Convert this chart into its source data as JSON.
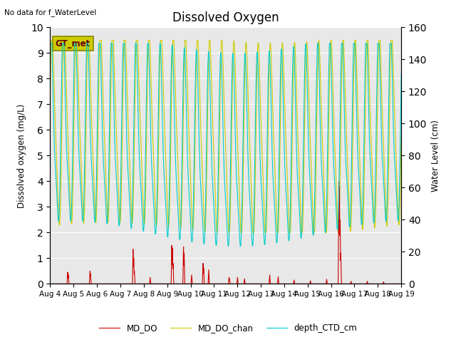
{
  "title": "Dissolved Oxygen",
  "top_left_text": "No data for f_WaterLevel",
  "ylabel_left": "Dissolved oxygen (mg/L)",
  "ylabel_right": "Water Level (cm)",
  "ylim_left": [
    0.0,
    10.0
  ],
  "ylim_right": [
    0,
    160
  ],
  "yticks_left": [
    0.0,
    1.0,
    2.0,
    3.0,
    4.0,
    5.0,
    6.0,
    7.0,
    8.0,
    9.0,
    10.0
  ],
  "yticks_right": [
    0,
    20,
    40,
    60,
    80,
    100,
    120,
    140,
    160
  ],
  "bg_color": "#e8e8e8",
  "fig_color": "#ffffff",
  "legend_box_text": "GT_met",
  "colors": {
    "MD_DO": "#cc0000",
    "MD_DO_chan": "#cccc00",
    "depth_CTD_cm": "#00cccc"
  },
  "xtick_labels": [
    "Aug 4",
    "Aug 5",
    "Aug 6",
    "Aug 7",
    "Aug 8",
    "Aug 9",
    "Aug 10",
    "Aug 11",
    "Aug 12",
    "Aug 13",
    "Aug 14",
    "Aug 15",
    "Aug 16",
    "Aug 17",
    "Aug 18",
    "Aug 19"
  ]
}
